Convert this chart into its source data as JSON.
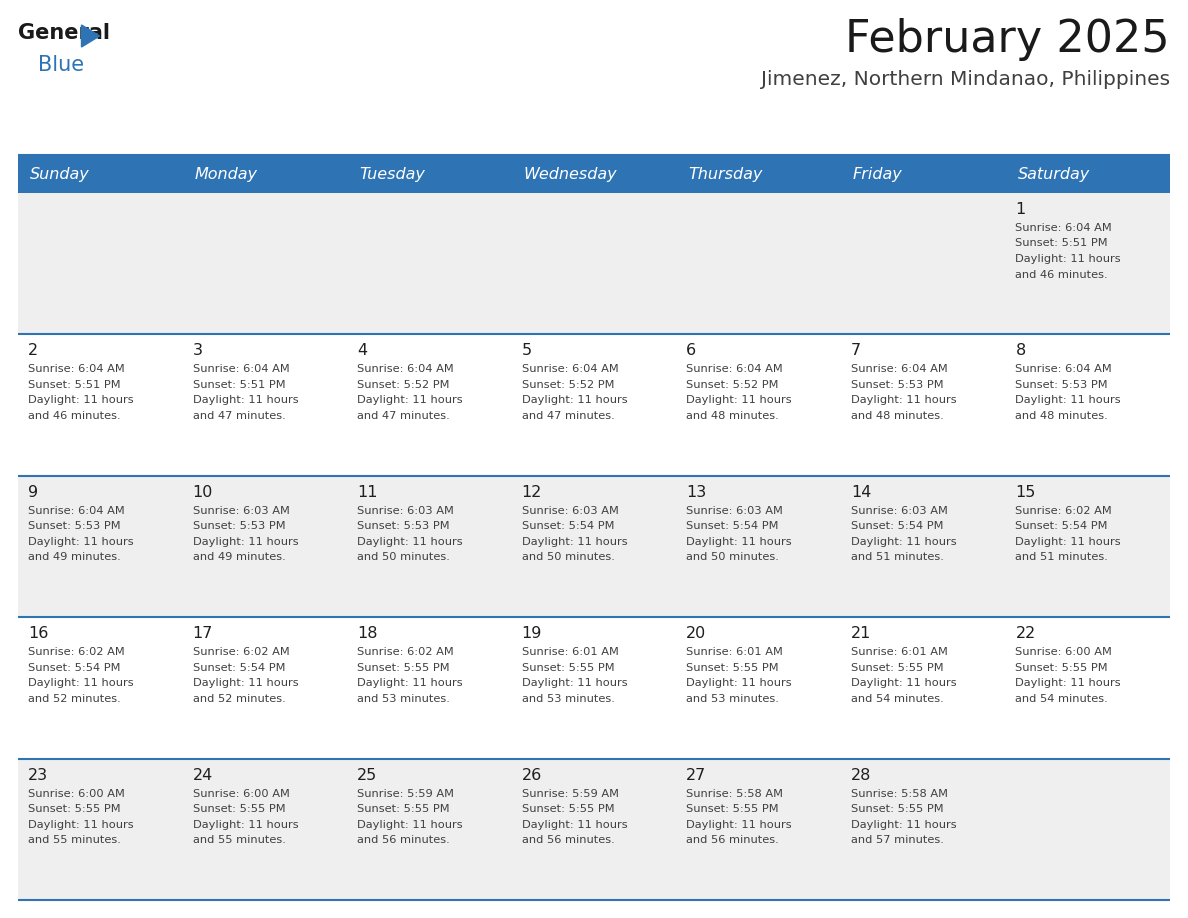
{
  "title": "February 2025",
  "subtitle": "Jimenez, Northern Mindanao, Philippines",
  "header_color": "#2E74B5",
  "header_text_color": "#FFFFFF",
  "day_names": [
    "Sunday",
    "Monday",
    "Tuesday",
    "Wednesday",
    "Thursday",
    "Friday",
    "Saturday"
  ],
  "divider_color": "#2E74B5",
  "bg_color": "#FFFFFF",
  "cell_bg_odd": "#EFEFEF",
  "cell_bg_even": "#FFFFFF",
  "day_num_color": "#1F1F1F",
  "text_color": "#404040",
  "calendar": [
    [
      null,
      null,
      null,
      null,
      null,
      null,
      {
        "day": 1,
        "sunrise": "6:04 AM",
        "sunset": "5:51 PM",
        "daylight": "11 hours and 46 minutes."
      }
    ],
    [
      {
        "day": 2,
        "sunrise": "6:04 AM",
        "sunset": "5:51 PM",
        "daylight": "11 hours and 46 minutes."
      },
      {
        "day": 3,
        "sunrise": "6:04 AM",
        "sunset": "5:51 PM",
        "daylight": "11 hours and 47 minutes."
      },
      {
        "day": 4,
        "sunrise": "6:04 AM",
        "sunset": "5:52 PM",
        "daylight": "11 hours and 47 minutes."
      },
      {
        "day": 5,
        "sunrise": "6:04 AM",
        "sunset": "5:52 PM",
        "daylight": "11 hours and 47 minutes."
      },
      {
        "day": 6,
        "sunrise": "6:04 AM",
        "sunset": "5:52 PM",
        "daylight": "11 hours and 48 minutes."
      },
      {
        "day": 7,
        "sunrise": "6:04 AM",
        "sunset": "5:53 PM",
        "daylight": "11 hours and 48 minutes."
      },
      {
        "day": 8,
        "sunrise": "6:04 AM",
        "sunset": "5:53 PM",
        "daylight": "11 hours and 48 minutes."
      }
    ],
    [
      {
        "day": 9,
        "sunrise": "6:04 AM",
        "sunset": "5:53 PM",
        "daylight": "11 hours and 49 minutes."
      },
      {
        "day": 10,
        "sunrise": "6:03 AM",
        "sunset": "5:53 PM",
        "daylight": "11 hours and 49 minutes."
      },
      {
        "day": 11,
        "sunrise": "6:03 AM",
        "sunset": "5:53 PM",
        "daylight": "11 hours and 50 minutes."
      },
      {
        "day": 12,
        "sunrise": "6:03 AM",
        "sunset": "5:54 PM",
        "daylight": "11 hours and 50 minutes."
      },
      {
        "day": 13,
        "sunrise": "6:03 AM",
        "sunset": "5:54 PM",
        "daylight": "11 hours and 50 minutes."
      },
      {
        "day": 14,
        "sunrise": "6:03 AM",
        "sunset": "5:54 PM",
        "daylight": "11 hours and 51 minutes."
      },
      {
        "day": 15,
        "sunrise": "6:02 AM",
        "sunset": "5:54 PM",
        "daylight": "11 hours and 51 minutes."
      }
    ],
    [
      {
        "day": 16,
        "sunrise": "6:02 AM",
        "sunset": "5:54 PM",
        "daylight": "11 hours and 52 minutes."
      },
      {
        "day": 17,
        "sunrise": "6:02 AM",
        "sunset": "5:54 PM",
        "daylight": "11 hours and 52 minutes."
      },
      {
        "day": 18,
        "sunrise": "6:02 AM",
        "sunset": "5:55 PM",
        "daylight": "11 hours and 53 minutes."
      },
      {
        "day": 19,
        "sunrise": "6:01 AM",
        "sunset": "5:55 PM",
        "daylight": "11 hours and 53 minutes."
      },
      {
        "day": 20,
        "sunrise": "6:01 AM",
        "sunset": "5:55 PM",
        "daylight": "11 hours and 53 minutes."
      },
      {
        "day": 21,
        "sunrise": "6:01 AM",
        "sunset": "5:55 PM",
        "daylight": "11 hours and 54 minutes."
      },
      {
        "day": 22,
        "sunrise": "6:00 AM",
        "sunset": "5:55 PM",
        "daylight": "11 hours and 54 minutes."
      }
    ],
    [
      {
        "day": 23,
        "sunrise": "6:00 AM",
        "sunset": "5:55 PM",
        "daylight": "11 hours and 55 minutes."
      },
      {
        "day": 24,
        "sunrise": "6:00 AM",
        "sunset": "5:55 PM",
        "daylight": "11 hours and 55 minutes."
      },
      {
        "day": 25,
        "sunrise": "5:59 AM",
        "sunset": "5:55 PM",
        "daylight": "11 hours and 56 minutes."
      },
      {
        "day": 26,
        "sunrise": "5:59 AM",
        "sunset": "5:55 PM",
        "daylight": "11 hours and 56 minutes."
      },
      {
        "day": 27,
        "sunrise": "5:58 AM",
        "sunset": "5:55 PM",
        "daylight": "11 hours and 56 minutes."
      },
      {
        "day": 28,
        "sunrise": "5:58 AM",
        "sunset": "5:55 PM",
        "daylight": "11 hours and 57 minutes."
      },
      null
    ]
  ],
  "logo_general_color": "#1A1A1A",
  "logo_blue_color": "#2E74B5",
  "row_bg_colors": [
    "#EFEFEF",
    "#FFFFFF",
    "#EFEFEF",
    "#FFFFFF",
    "#EFEFEF"
  ]
}
